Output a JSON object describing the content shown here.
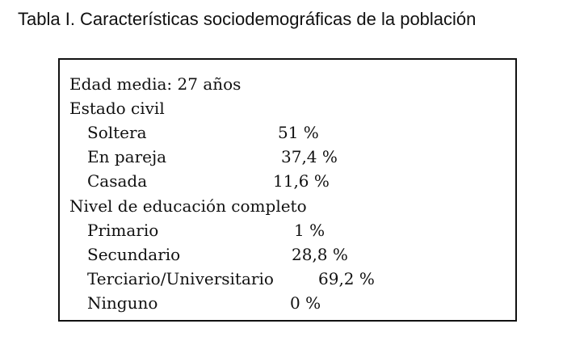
{
  "title": "Tabla I. Características sociodemográficas de la población",
  "table": {
    "edad_media": "Edad media: 27 años",
    "estado_civil": {
      "heading": "Estado civil",
      "rows": [
        {
          "label": "Soltera",
          "value": "51 %"
        },
        {
          "label": "En pareja",
          "value": "37,4 %"
        },
        {
          "label": "Casada",
          "value": "11,6 %"
        }
      ]
    },
    "educacion": {
      "heading": "Nivel de educación completo",
      "rows": [
        {
          "label": "Primario",
          "value": "1 %"
        },
        {
          "label": "Secundario",
          "value": "28,8 %"
        },
        {
          "label": "Terciario/Universitario",
          "value": "69,2 %"
        },
        {
          "label": "Ninguno",
          "value": "0 %"
        }
      ]
    }
  }
}
